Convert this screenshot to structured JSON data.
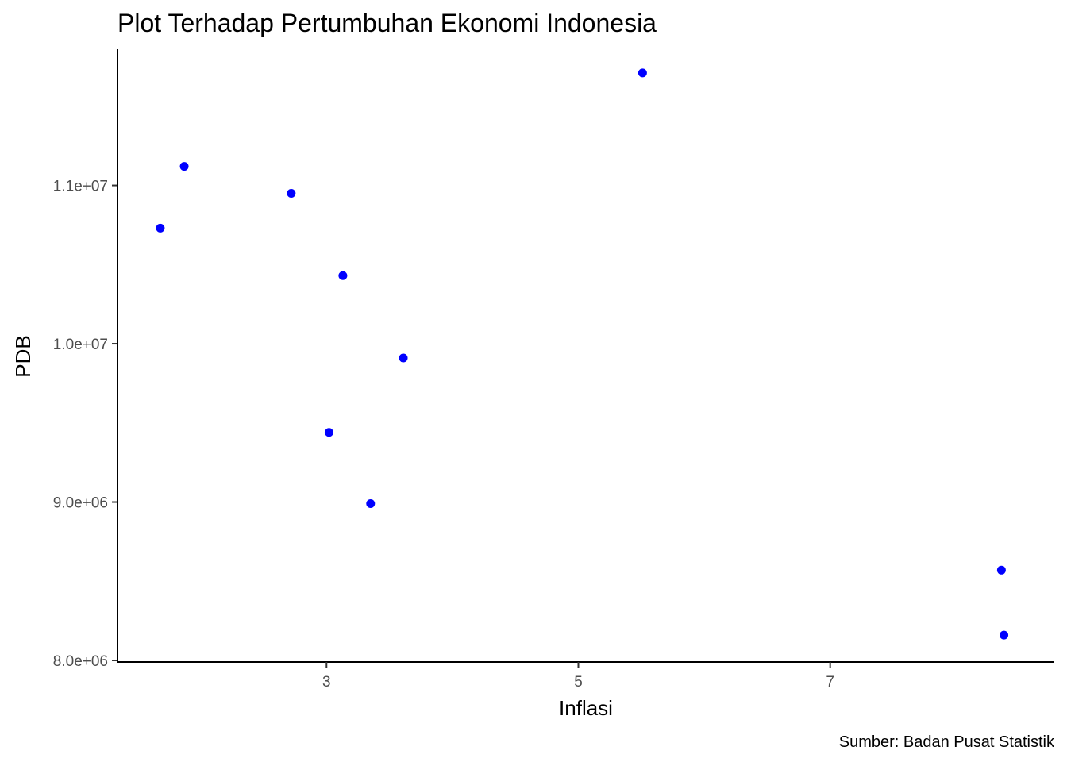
{
  "chart_data": {
    "type": "scatter",
    "title": "Plot Terhadap Pertumbuhan Ekonomi Indonesia",
    "xlabel": "Inflasi",
    "ylabel": "PDB",
    "caption": "Sumber:  Badan Pusat Statistik",
    "xlim": [
      1.34,
      8.78
    ],
    "ylim": [
      7990000,
      11860000
    ],
    "x_ticks": [
      3,
      5,
      7
    ],
    "x_tick_labels": [
      "3",
      "5",
      "7"
    ],
    "y_ticks": [
      8000000,
      9000000,
      10000000,
      11000000
    ],
    "y_tick_labels": [
      "8.0e+06",
      "9.0e+06",
      "1.0e+07",
      "1.1e+07"
    ],
    "point_color": "#0000FF",
    "grid": false,
    "points": [
      {
        "x": 1.68,
        "y": 10730000
      },
      {
        "x": 1.87,
        "y": 11120000
      },
      {
        "x": 2.72,
        "y": 10950000
      },
      {
        "x": 3.13,
        "y": 10430000
      },
      {
        "x": 3.61,
        "y": 9910000
      },
      {
        "x": 3.02,
        "y": 9440000
      },
      {
        "x": 3.35,
        "y": 8990000
      },
      {
        "x": 5.51,
        "y": 11710000
      },
      {
        "x": 8.36,
        "y": 8570000
      },
      {
        "x": 8.38,
        "y": 8160000
      }
    ]
  }
}
